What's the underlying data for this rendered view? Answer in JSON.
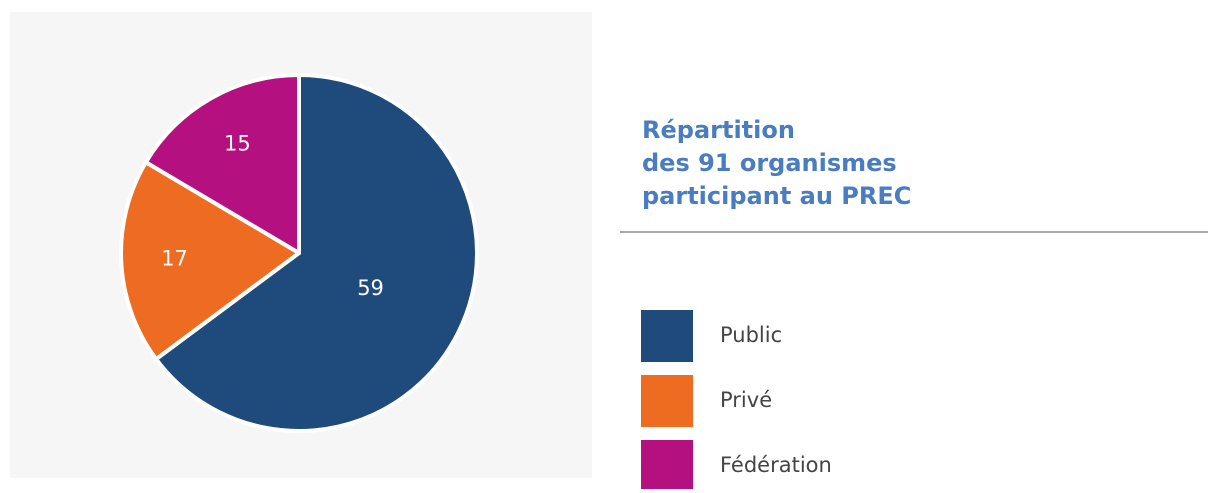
{
  "chart_data": {
    "type": "pie",
    "title": [
      "Répartition",
      "des 91 organismes",
      "participant au PREC"
    ],
    "categories": [
      "Public",
      "Privé",
      "Fédération"
    ],
    "values": [
      59,
      17,
      15
    ],
    "colors": [
      "#1f4a7c",
      "#ee6c22",
      "#b5107f"
    ]
  }
}
